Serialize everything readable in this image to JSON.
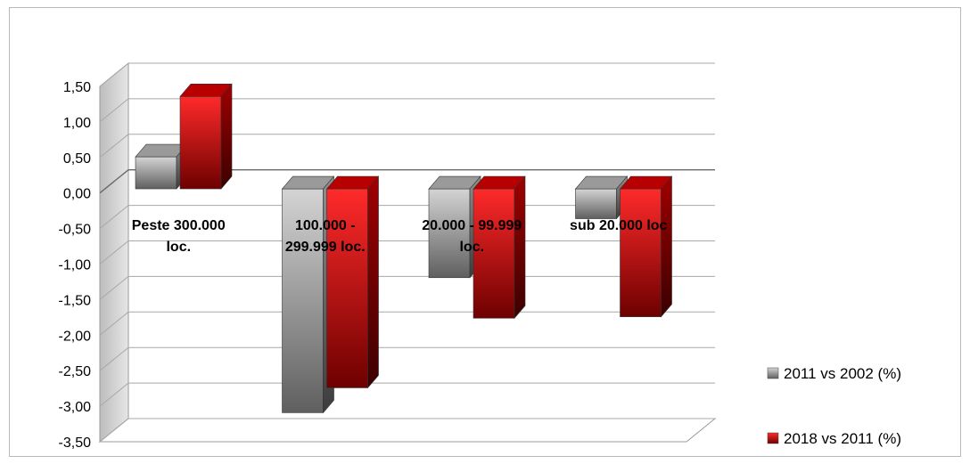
{
  "chart_data": {
    "type": "bar",
    "title": "",
    "xlabel": "",
    "ylabel": "",
    "categories": [
      [
        "Peste 300.000",
        "loc."
      ],
      [
        "100.000 -",
        "299.999 loc."
      ],
      [
        "20.000 - 99.999",
        "loc."
      ],
      [
        "sub 20.000 loc"
      ]
    ],
    "series": [
      {
        "name": "2011 vs 2002 (%)",
        "values": [
          0.45,
          -3.15,
          -1.25,
          -0.42
        ],
        "color": "#8a8a8a"
      },
      {
        "name": "2018 vs 2011 (%)",
        "values": [
          1.3,
          -2.8,
          -1.82,
          -1.8
        ],
        "color": "#c00000"
      }
    ],
    "ylim": [
      -3.5,
      1.5
    ],
    "yticks": [
      "1,50",
      "1,00",
      "0,50",
      "0,00",
      "-0,50",
      "-1,00",
      "-1,50",
      "-2,00",
      "-2,50",
      "-3,00",
      "-3,50"
    ],
    "grid": true,
    "legend_position": "right",
    "style": "3d-clustered-column"
  }
}
